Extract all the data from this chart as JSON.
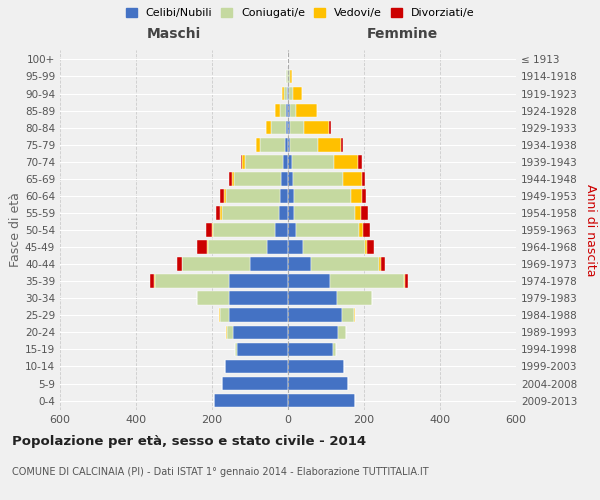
{
  "age_groups": [
    "0-4",
    "5-9",
    "10-14",
    "15-19",
    "20-24",
    "25-29",
    "30-34",
    "35-39",
    "40-44",
    "45-49",
    "50-54",
    "55-59",
    "60-64",
    "65-69",
    "70-74",
    "75-79",
    "80-84",
    "85-89",
    "90-94",
    "95-99",
    "100+"
  ],
  "birth_years": [
    "2009-2013",
    "2004-2008",
    "1999-2003",
    "1994-1998",
    "1989-1993",
    "1984-1988",
    "1979-1983",
    "1974-1978",
    "1969-1973",
    "1964-1968",
    "1959-1963",
    "1954-1958",
    "1949-1953",
    "1944-1948",
    "1939-1943",
    "1934-1938",
    "1929-1933",
    "1924-1928",
    "1919-1923",
    "1914-1918",
    "≤ 1913"
  ],
  "maschi_celibi": [
    195,
    175,
    165,
    135,
    145,
    155,
    155,
    155,
    100,
    55,
    35,
    25,
    22,
    18,
    14,
    8,
    6,
    4,
    3,
    1,
    0
  ],
  "maschi_coniugati": [
    0,
    0,
    0,
    5,
    15,
    25,
    85,
    195,
    178,
    155,
    162,
    150,
    142,
    125,
    98,
    65,
    38,
    18,
    8,
    3,
    0
  ],
  "maschi_vedovi": [
    0,
    0,
    0,
    0,
    2,
    2,
    0,
    2,
    2,
    2,
    2,
    3,
    4,
    5,
    8,
    10,
    15,
    12,
    6,
    2,
    0
  ],
  "maschi_divorziati": [
    0,
    0,
    0,
    0,
    0,
    0,
    0,
    10,
    12,
    28,
    18,
    12,
    10,
    8,
    3,
    2,
    0,
    0,
    0,
    0,
    0
  ],
  "femmine_nubili": [
    175,
    158,
    148,
    118,
    132,
    142,
    130,
    110,
    60,
    40,
    20,
    15,
    15,
    12,
    10,
    6,
    5,
    4,
    3,
    1,
    0
  ],
  "femmine_coniugate": [
    0,
    0,
    0,
    8,
    20,
    32,
    90,
    195,
    180,
    162,
    168,
    162,
    150,
    133,
    112,
    72,
    38,
    18,
    10,
    4,
    0
  ],
  "femmine_vedove": [
    0,
    0,
    0,
    0,
    0,
    2,
    0,
    2,
    5,
    5,
    10,
    15,
    30,
    50,
    62,
    62,
    65,
    55,
    25,
    6,
    0
  ],
  "femmine_divorziate": [
    0,
    0,
    0,
    0,
    0,
    0,
    0,
    10,
    10,
    20,
    18,
    18,
    10,
    8,
    10,
    5,
    5,
    0,
    0,
    0,
    0
  ],
  "colors_celibi": "#4472c4",
  "colors_coniugati": "#c5d9a0",
  "colors_vedovi": "#ffc000",
  "colors_divorziati": "#cc0000",
  "xlim": 600,
  "title": "Popolazione per età, sesso e stato civile - 2014",
  "subtitle": "COMUNE DI CALCINAIA (PI) - Dati ISTAT 1° gennaio 2014 - Elaborazione TUTTITALIA.IT",
  "ylabel_left": "Fasce di età",
  "ylabel_right": "Anni di nascita",
  "label_maschi": "Maschi",
  "label_femmine": "Femmine",
  "legend_labels": [
    "Celibi/Nubili",
    "Coniugati/e",
    "Vedovi/e",
    "Divorziati/e"
  ],
  "bg_color": "#f0f0f0",
  "xticks": [
    -600,
    -400,
    -200,
    0,
    200,
    400,
    600
  ]
}
